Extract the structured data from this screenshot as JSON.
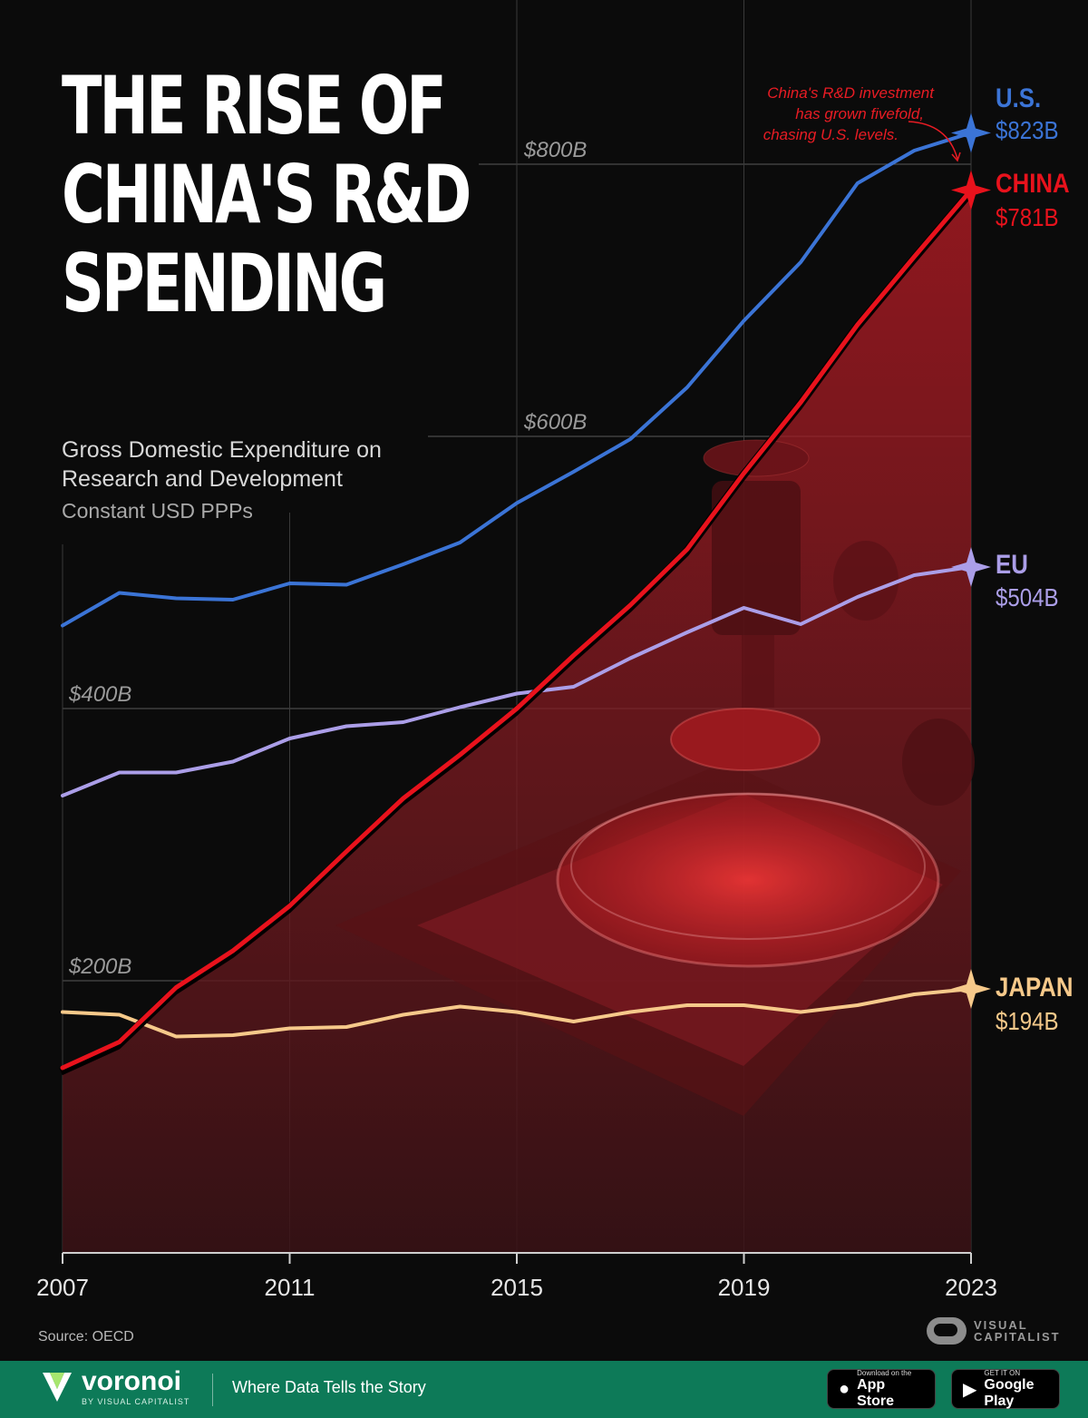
{
  "title": {
    "line1": "THE RISE OF",
    "line2": "CHINA'S R&D",
    "line3": "SPENDING"
  },
  "subtitle": "Gross Domestic Expenditure on Research and Development",
  "units": "Constant USD PPPs",
  "annotation": {
    "line1": "China's R&D investment",
    "line2": "has grown fivefold,",
    "line3": "chasing U.S. levels."
  },
  "source": "Source: OECD",
  "footer": {
    "brand": "voronoi",
    "brand_sub": "BY VISUAL CAPITALIST",
    "tagline": "Where Data Tells the Story",
    "app_store_small": "Download on the",
    "app_store": "App Store",
    "google_play_small": "GET IT ON",
    "google_play": "Google Play",
    "vc_line1": "VISUAL",
    "vc_line2": "CAPITALIST"
  },
  "colors": {
    "us": "#3b74d6",
    "china": "#e8121c",
    "eu": "#ab9ee8",
    "japan": "#f6c98a",
    "background": "#0b0b0b"
  },
  "chart_data": {
    "type": "line",
    "title": "The Rise of China's R&D Spending",
    "ylabel": "Gross Domestic Expenditure on R&D (Constant USD PPPs)",
    "xlabel": "",
    "x": [
      2007,
      2008,
      2009,
      2010,
      2011,
      2012,
      2013,
      2014,
      2015,
      2016,
      2017,
      2018,
      2019,
      2020,
      2021,
      2022,
      2023
    ],
    "xticks": [
      2007,
      2011,
      2015,
      2019,
      2023
    ],
    "xtick_labels": [
      "2007",
      "2011",
      "2015",
      "2019",
      "2023"
    ],
    "ylim": [
      0,
      880
    ],
    "yticks": [
      200,
      400,
      600,
      800
    ],
    "ytick_labels": [
      "$200B",
      "$400B",
      "$600B",
      "$800B"
    ],
    "grid": true,
    "series": [
      {
        "key": "us",
        "name": "U.S.",
        "end_label": "$823B",
        "values": [
          461,
          485,
          481,
          480,
          492,
          491,
          506,
          522,
          551,
          574,
          598,
          636,
          685,
          728,
          786,
          810,
          823
        ]
      },
      {
        "key": "china",
        "name": "CHINA",
        "end_label": "$781B",
        "values": [
          136,
          155,
          195,
          222,
          255,
          295,
          334,
          366,
          400,
          439,
          476,
          517,
          573,
          625,
          682,
          732,
          781
        ]
      },
      {
        "key": "eu",
        "name": "EU",
        "end_label": "$504B",
        "values": [
          336,
          353,
          353,
          361,
          378,
          387,
          390,
          401,
          411,
          416,
          437,
          456,
          474,
          462,
          482,
          498,
          504
        ]
      },
      {
        "key": "japan",
        "name": "JAPAN",
        "end_label": "$194B",
        "values": [
          177,
          175,
          159,
          160,
          165,
          166,
          175,
          181,
          177,
          170,
          177,
          182,
          182,
          177,
          182,
          190,
          194
        ]
      }
    ]
  }
}
